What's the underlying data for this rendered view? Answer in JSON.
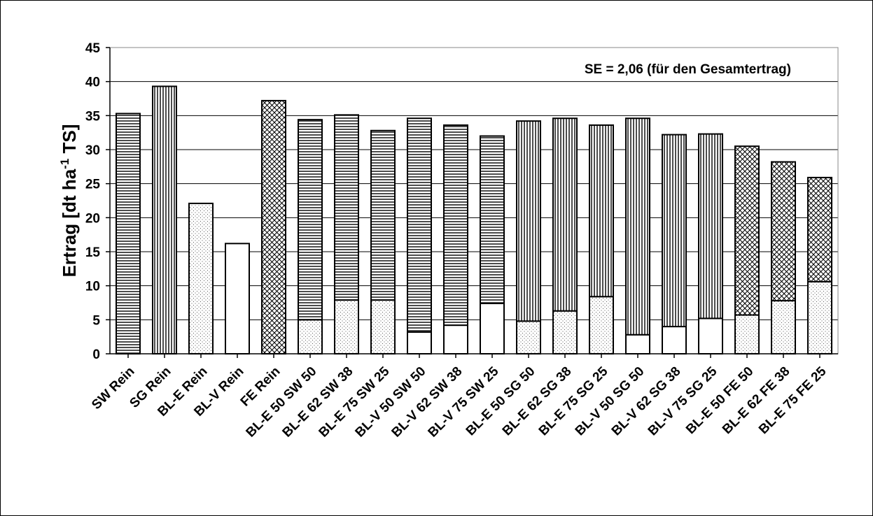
{
  "chart_data": {
    "type": "bar",
    "stacked": true,
    "title": "",
    "ylabel": {
      "main": "Ertrag [dt ha",
      "sup": "-1",
      "tail": " TS]"
    },
    "annotation": "SE = 2,06 (für den Gesamtertrag)",
    "ylim": [
      0,
      45
    ],
    "yticks": [
      0,
      5,
      10,
      15,
      20,
      25,
      30,
      35,
      40,
      45
    ],
    "grid": true,
    "categories": [
      "SW Rein",
      "SG Rein",
      "BL-E Rein",
      "BL-V Rein",
      "FE Rein",
      "BL-E 50 SW 50",
      "BL-E 62 SW 38",
      "BL-E 75 SW 25",
      "BL-V 50 SW 50",
      "BL-V 62 SW 38",
      "BL-V 75 SW 25",
      "BL-E 50 SG 50",
      "BL-E 62 SG 38",
      "BL-E 75 SG 25",
      "BL-V 50 SG 50",
      "BL-V 62 SG 38",
      "BL-V 75 SG 25",
      "BL-E 50 FE 50",
      "BL-E 62 FE 38",
      "BL-E 75 FE 25"
    ],
    "bars": [
      {
        "segments": [
          {
            "pattern": "horiz",
            "value": 35.3
          }
        ]
      },
      {
        "segments": [
          {
            "pattern": "vert",
            "value": 39.3
          }
        ]
      },
      {
        "segments": [
          {
            "pattern": "dots",
            "value": 22.1
          }
        ]
      },
      {
        "segments": [
          {
            "pattern": "blank",
            "value": 16.2
          }
        ]
      },
      {
        "segments": [
          {
            "pattern": "cross",
            "value": 37.2
          }
        ]
      },
      {
        "segments": [
          {
            "pattern": "dots",
            "value": 5.0
          },
          {
            "pattern": "horiz",
            "value": 29.4
          }
        ]
      },
      {
        "segments": [
          {
            "pattern": "dots",
            "value": 7.9
          },
          {
            "pattern": "horiz",
            "value": 27.2
          }
        ]
      },
      {
        "segments": [
          {
            "pattern": "dots",
            "value": 7.9
          },
          {
            "pattern": "horiz",
            "value": 24.9
          }
        ]
      },
      {
        "segments": [
          {
            "pattern": "blank",
            "value": 3.2
          },
          {
            "pattern": "horiz",
            "value": 31.4
          }
        ]
      },
      {
        "segments": [
          {
            "pattern": "blank",
            "value": 4.2
          },
          {
            "pattern": "horiz",
            "value": 29.4
          }
        ]
      },
      {
        "segments": [
          {
            "pattern": "blank",
            "value": 7.4
          },
          {
            "pattern": "horiz",
            "value": 24.6
          }
        ]
      },
      {
        "segments": [
          {
            "pattern": "dots",
            "value": 4.8
          },
          {
            "pattern": "vert",
            "value": 29.4
          }
        ]
      },
      {
        "segments": [
          {
            "pattern": "dots",
            "value": 6.3
          },
          {
            "pattern": "vert",
            "value": 28.3
          }
        ]
      },
      {
        "segments": [
          {
            "pattern": "dots",
            "value": 8.4
          },
          {
            "pattern": "vert",
            "value": 25.2
          }
        ]
      },
      {
        "segments": [
          {
            "pattern": "blank",
            "value": 2.8
          },
          {
            "pattern": "vert",
            "value": 31.8
          }
        ]
      },
      {
        "segments": [
          {
            "pattern": "blank",
            "value": 4.0
          },
          {
            "pattern": "vert",
            "value": 28.2
          }
        ]
      },
      {
        "segments": [
          {
            "pattern": "blank",
            "value": 5.2
          },
          {
            "pattern": "vert",
            "value": 27.1
          }
        ]
      },
      {
        "segments": [
          {
            "pattern": "dots",
            "value": 5.7
          },
          {
            "pattern": "cross",
            "value": 24.8
          }
        ]
      },
      {
        "segments": [
          {
            "pattern": "dots",
            "value": 7.8
          },
          {
            "pattern": "cross",
            "value": 20.4
          }
        ]
      },
      {
        "segments": [
          {
            "pattern": "dots",
            "value": 10.6
          },
          {
            "pattern": "cross",
            "value": 15.3
          }
        ]
      }
    ]
  }
}
